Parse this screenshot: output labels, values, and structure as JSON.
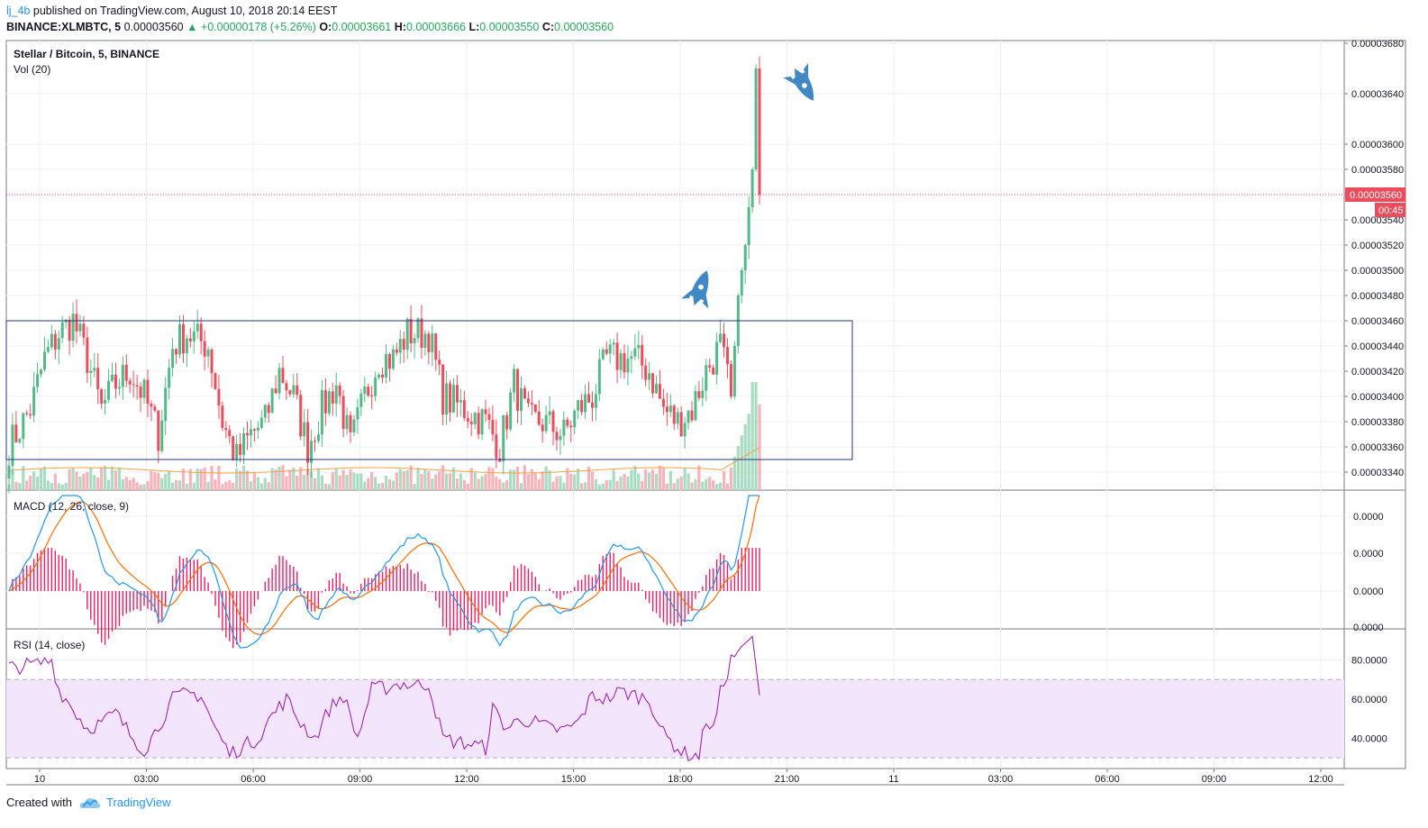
{
  "header": {
    "author": "lj_4b",
    "published": "published on TradingView.com, August 10, 2018 20:14 EEST"
  },
  "ohlc": {
    "symbol": "BINANCE:XLMBTC, 5",
    "price": "0.00003560",
    "change": "▲ +0.00000178 (+5.26%)",
    "o_label": "O:",
    "o": "0.00003661",
    "h_label": "H:",
    "h": "0.00003666",
    "l_label": "L:",
    "l": "0.00003550",
    "c_label": "C:",
    "c": "0.00003560"
  },
  "footer": {
    "created": "Created with",
    "brand": "TradingView"
  },
  "colors": {
    "up": "#53b987",
    "down": "#eb4d5c",
    "vol_up": "#a8dcc3",
    "vol_down": "#f5b3ba",
    "macd": "#2196f3",
    "signal": "#ff6d00",
    "hist": "#e91e63",
    "rsi": "#9c27b0",
    "rsi_band": "#f3e5fb",
    "box": "#1e3a8a",
    "rocket": "#3f88c5",
    "price_line": "#eb4d5c",
    "grid": "#eceff2"
  },
  "chart_data": [
    {
      "type": "candlestick",
      "title": "Stellar / Bitcoin, 5, BINANCE",
      "indicator": "Vol (20)",
      "y_axis_ticks": [
        "0.00003680",
        "0.00003640",
        "0.00003600",
        "0.00003580",
        "0.00003560",
        "0.00003540",
        "0.00003520",
        "0.00003500",
        "0.00003480",
        "0.00003460",
        "0.00003440",
        "0.00003420",
        "0.00003400",
        "0.00003380",
        "0.00003360",
        "0.00003340"
      ],
      "ylim": [
        3.328e-05,
        3.686e-05
      ],
      "x_axis_ticks": [
        "10",
        "03:00",
        "06:00",
        "09:00",
        "12:00",
        "15:00",
        "18:00",
        "21:00",
        "11",
        "03:00",
        "06:00",
        "09:00",
        "12:00"
      ],
      "last_price_label": "0.00003560",
      "countdown_label": "00:45",
      "last_price": 3.56e-05,
      "range_box": {
        "low": 3.35e-05,
        "high": 3.46e-05,
        "start": "00:00",
        "end": "21:40"
      },
      "grid": true,
      "close_series_keypoints": [
        [
          0,
          3.36e-05
        ],
        [
          6,
          3.39e-05
        ],
        [
          10,
          3.43e-05
        ],
        [
          14,
          3.45e-05
        ],
        [
          18,
          3.46e-05
        ],
        [
          22,
          3.43e-05
        ],
        [
          26,
          3.39e-05
        ],
        [
          30,
          3.41e-05
        ],
        [
          34,
          3.42e-05
        ],
        [
          38,
          3.4e-05
        ],
        [
          42,
          3.37e-05
        ],
        [
          46,
          3.44e-05
        ],
        [
          50,
          3.45e-05
        ],
        [
          56,
          3.44e-05
        ],
        [
          60,
          3.38e-05
        ],
        [
          64,
          3.35e-05
        ],
        [
          68,
          3.37e-05
        ],
        [
          72,
          3.38e-05
        ],
        [
          76,
          3.42e-05
        ],
        [
          80,
          3.4e-05
        ],
        [
          84,
          3.36e-05
        ],
        [
          88,
          3.39e-05
        ],
        [
          92,
          3.41e-05
        ],
        [
          96,
          3.36e-05
        ],
        [
          100,
          3.4e-05
        ],
        [
          104,
          3.43e-05
        ],
        [
          108,
          3.43e-05
        ],
        [
          112,
          3.45e-05
        ],
        [
          118,
          3.45e-05
        ],
        [
          122,
          3.4e-05
        ],
        [
          128,
          3.39e-05
        ],
        [
          134,
          3.38e-05
        ],
        [
          138,
          3.36e-05
        ],
        [
          142,
          3.41e-05
        ],
        [
          146,
          3.38e-05
        ],
        [
          150,
          3.38e-05
        ],
        [
          156,
          3.37e-05
        ],
        [
          160,
          3.39e-05
        ],
        [
          164,
          3.4e-05
        ],
        [
          168,
          3.43e-05
        ],
        [
          172,
          3.43e-05
        ],
        [
          176,
          3.43e-05
        ],
        [
          180,
          3.42e-05
        ],
        [
          184,
          3.39e-05
        ],
        [
          188,
          3.38e-05
        ],
        [
          192,
          3.39e-05
        ],
        [
          196,
          3.42e-05
        ],
        [
          200,
          3.44e-05
        ],
        [
          203,
          3.4e-05
        ],
        [
          205,
          3.48e-05
        ],
        [
          207,
          3.52e-05
        ],
        [
          209,
          3.58e-05
        ],
        [
          210,
          3.66e-05
        ],
        [
          211,
          3.56e-05
        ]
      ]
    },
    {
      "type": "line",
      "title": "MACD (12, 26, close, 9)",
      "y_axis_ticks": [
        "0.0000",
        "0.0000",
        "0.0000",
        "0.0000"
      ],
      "series": [
        {
          "values_desc": "macd line"
        },
        {
          "values_desc": "signal line"
        },
        {
          "values_desc": "histogram"
        }
      ]
    },
    {
      "type": "line",
      "title": "RSI (14, close)",
      "y_axis_ticks": [
        "80.0000",
        "60.0000",
        "40.0000"
      ],
      "ylim": [
        25,
        95
      ],
      "band": [
        30,
        70
      ],
      "rsi_keypoints": [
        [
          0,
          76
        ],
        [
          8,
          78
        ],
        [
          12,
          80
        ],
        [
          14,
          65
        ],
        [
          18,
          55
        ],
        [
          22,
          45
        ],
        [
          26,
          48
        ],
        [
          30,
          53
        ],
        [
          34,
          42
        ],
        [
          38,
          34
        ],
        [
          42,
          46
        ],
        [
          46,
          60
        ],
        [
          50,
          63
        ],
        [
          54,
          62
        ],
        [
          58,
          45
        ],
        [
          62,
          32
        ],
        [
          66,
          36
        ],
        [
          70,
          40
        ],
        [
          74,
          52
        ],
        [
          78,
          60
        ],
        [
          82,
          48
        ],
        [
          86,
          40
        ],
        [
          90,
          55
        ],
        [
          94,
          62
        ],
        [
          98,
          40
        ],
        [
          102,
          65
        ],
        [
          106,
          66
        ],
        [
          110,
          68
        ],
        [
          114,
          67
        ],
        [
          118,
          68
        ],
        [
          122,
          40
        ],
        [
          126,
          38
        ],
        [
          130,
          37
        ],
        [
          134,
          35
        ],
        [
          136,
          55
        ],
        [
          140,
          45
        ],
        [
          144,
          50
        ],
        [
          148,
          48
        ],
        [
          152,
          45
        ],
        [
          156,
          44
        ],
        [
          160,
          48
        ],
        [
          164,
          62
        ],
        [
          168,
          60
        ],
        [
          172,
          64
        ],
        [
          176,
          62
        ],
        [
          180,
          60
        ],
        [
          184,
          42
        ],
        [
          188,
          35
        ],
        [
          190,
          32
        ],
        [
          194,
          31
        ],
        [
          196,
          50
        ],
        [
          198,
          44
        ],
        [
          200,
          63
        ],
        [
          203,
          80
        ],
        [
          206,
          87
        ],
        [
          209,
          92
        ],
        [
          211,
          62
        ]
      ]
    }
  ]
}
